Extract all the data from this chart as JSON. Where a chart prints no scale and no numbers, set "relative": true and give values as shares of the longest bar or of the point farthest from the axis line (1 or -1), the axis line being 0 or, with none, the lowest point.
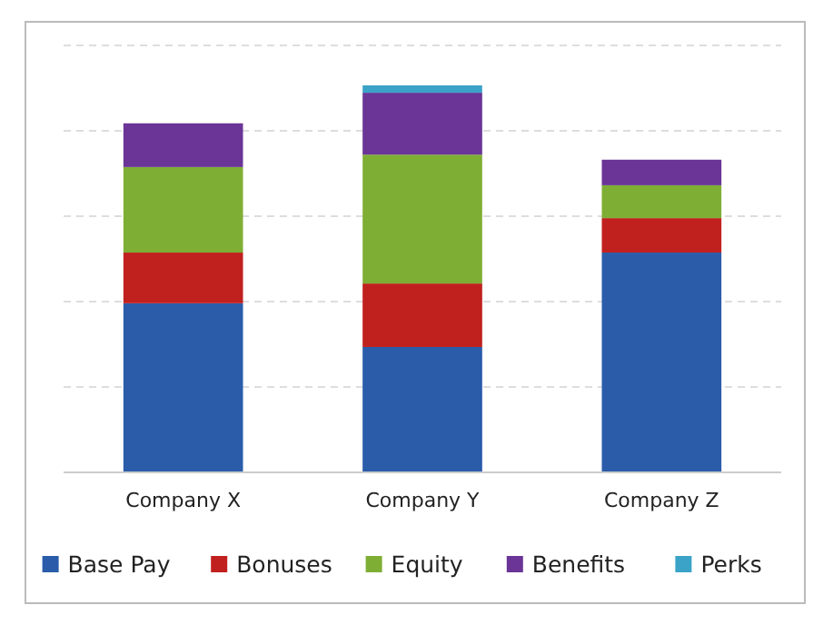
{
  "chart_data": {
    "type": "bar",
    "stacked": true,
    "relative": true,
    "categories": [
      "Company X",
      "Company Y",
      "Company Z"
    ],
    "series": [
      {
        "name": "Base Pay",
        "color": "#2a5caa",
        "values": [
          0.437,
          0.324,
          0.568
        ]
      },
      {
        "name": "Bonuses",
        "color": "#c0211f",
        "values": [
          0.131,
          0.164,
          0.089
        ]
      },
      {
        "name": "Equity",
        "color": "#7fae35",
        "values": [
          0.221,
          0.333,
          0.085
        ]
      },
      {
        "name": "Benefits",
        "color": "#6a3596",
        "values": [
          0.113,
          0.16,
          0.066
        ]
      },
      {
        "name": "Perks",
        "color": "#3ba3c8",
        "values": [
          null,
          0.019,
          null
        ]
      }
    ],
    "grid": "y",
    "legend": "bottom"
  }
}
